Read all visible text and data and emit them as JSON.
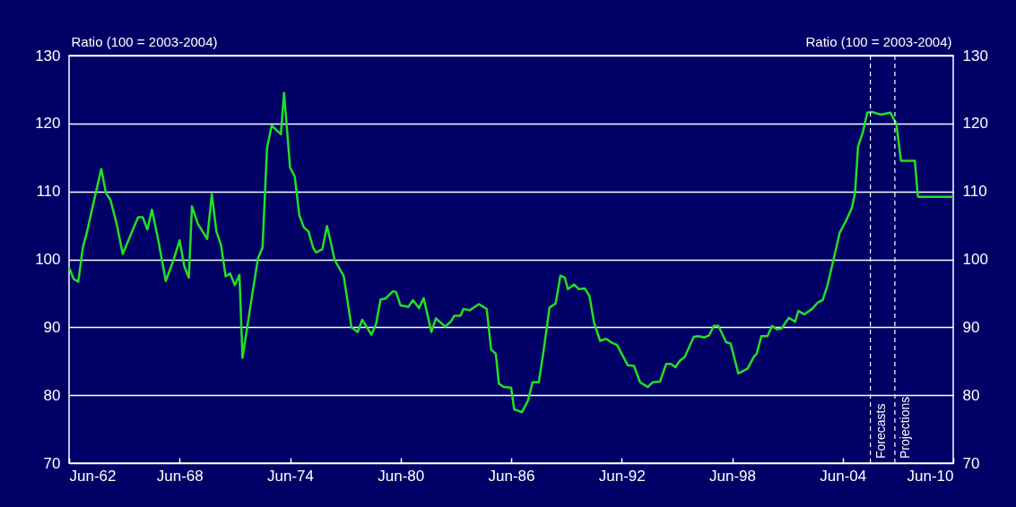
{
  "chart_data": {
    "type": "line",
    "ylabel": "Ratio (100 = 2003-2004)",
    "y2label": "Ratio (100 = 2003-2004)",
    "x": [
      "1962-06",
      "1962-09",
      "1962-12",
      "1963-03",
      "1963-06",
      "1963-09",
      "1964-03",
      "1964-06",
      "1964-09",
      "1965-01",
      "1965-05",
      "1966-03",
      "1966-06",
      "1966-09",
      "1966-12",
      "1967-04",
      "1967-09",
      "1968-02",
      "1968-06",
      "1968-09",
      "1968-12",
      "1969-02",
      "1969-06",
      "1969-12",
      "1970-03",
      "1970-06",
      "1970-09",
      "1970-12",
      "1971-03",
      "1971-06",
      "1971-09",
      "1971-11",
      "1972-04",
      "1972-09",
      "1972-12",
      "1973-03",
      "1973-06",
      "1973-12",
      "1974-02",
      "1974-06",
      "1974-09",
      "1974-12",
      "1975-03",
      "1975-06",
      "1975-09",
      "1975-11",
      "1976-03",
      "1976-06",
      "1976-08",
      "1976-11",
      "1977-05",
      "1977-10",
      "1978-02",
      "1978-05",
      "1978-11",
      "1979-02",
      "1979-05",
      "1979-08",
      "1980-01",
      "1980-03",
      "1980-06",
      "1980-11",
      "1981-02",
      "1981-06",
      "1981-09",
      "1982-02",
      "1982-05",
      "1982-11",
      "1983-03",
      "1983-05",
      "1983-09",
      "1983-11",
      "1984-03",
      "1984-09",
      "1985-02",
      "1985-05",
      "1985-08",
      "1985-10",
      "1986-01",
      "1986-06",
      "1986-08",
      "1987-01",
      "1987-05",
      "1987-08",
      "1987-12",
      "1988-03",
      "1988-07",
      "1988-11",
      "1989-02",
      "1989-05",
      "1989-07",
      "1989-11",
      "1990-02",
      "1990-06",
      "1990-09",
      "1990-12",
      "1991-04",
      "1991-08",
      "1991-11",
      "1992-03",
      "1992-06",
      "1992-10",
      "1993-02",
      "1993-06",
      "1993-11",
      "1994-02",
      "1994-07",
      "1994-11",
      "1995-02",
      "1995-05",
      "1995-08",
      "1995-11",
      "1996-05",
      "1996-08",
      "1996-12",
      "1997-03",
      "1997-06",
      "1997-09",
      "1998-02",
      "1998-05",
      "1998-10",
      "1999-04",
      "1999-08",
      "1999-10",
      "2000-01",
      "2000-05",
      "2000-08",
      "2000-11",
      "2001-02",
      "2001-07",
      "2001-11",
      "2002-01",
      "2002-05",
      "2002-10",
      "2003-02",
      "2003-05",
      "2003-08",
      "2003-12",
      "2004-04",
      "2004-08",
      "2004-12",
      "2005-02",
      "2005-04",
      "2005-07",
      "2005-10",
      "2006-01",
      "2006-07",
      "2007-01",
      "2007-05",
      "2007-08",
      "2008-05",
      "2008-07",
      "2010-06"
    ],
    "series": [
      {
        "color": "#22e022",
        "values": [
          98.8,
          97.1,
          96.7,
          101.7,
          104.3,
          107.4,
          113.3,
          109.8,
          108.7,
          105.2,
          100.8,
          106.2,
          106.2,
          104.4,
          107.3,
          103.0,
          96.8,
          99.9,
          102.8,
          99.0,
          97.3,
          107.8,
          105.2,
          103.0,
          109.6,
          104.1,
          102.1,
          97.5,
          97.9,
          96.2,
          97.7,
          85.5,
          92.9,
          100.1,
          101.7,
          116.4,
          119.7,
          118.4,
          124.5,
          113.5,
          112.2,
          106.5,
          104.7,
          104.1,
          101.7,
          101.0,
          101.5,
          104.9,
          103.0,
          99.9,
          97.5,
          90.0,
          89.3,
          91.1,
          88.9,
          90.5,
          94.1,
          94.2,
          95.3,
          95.2,
          93.2,
          93.0,
          94.0,
          92.8,
          94.3,
          89.3,
          91.3,
          90.1,
          90.9,
          91.7,
          91.7,
          92.7,
          92.5,
          93.4,
          92.7,
          86.7,
          86.1,
          81.7,
          81.2,
          81.1,
          77.9,
          77.5,
          79.2,
          81.9,
          81.9,
          86.3,
          92.9,
          93.5,
          97.6,
          97.3,
          95.6,
          96.3,
          95.6,
          95.7,
          94.6,
          90.7,
          88.0,
          88.3,
          87.8,
          87.4,
          86.1,
          84.4,
          84.3,
          81.9,
          81.2,
          81.9,
          82.0,
          84.6,
          84.6,
          84.1,
          85.1,
          85.6,
          88.6,
          88.7,
          88.5,
          88.8,
          90.2,
          90.2,
          87.8,
          87.6,
          83.2,
          83.9,
          85.6,
          86.1,
          88.7,
          88.7,
          90.2,
          89.7,
          89.8,
          91.4,
          90.8,
          92.4,
          91.9,
          92.7,
          93.7,
          94.0,
          96.1,
          99.9,
          103.9,
          105.6,
          107.6,
          109.8,
          116.6,
          118.6,
          121.6,
          121.7,
          121.3,
          121.6,
          119.9,
          114.5,
          114.5,
          109.2,
          109.2
        ]
      }
    ],
    "xlim": [
      "1962-06",
      "2010-06"
    ],
    "xticks": [
      {
        "value": "1962-06",
        "label": "Jun-62"
      },
      {
        "value": "1968-06",
        "label": "Jun-68"
      },
      {
        "value": "1974-06",
        "label": "Jun-74"
      },
      {
        "value": "1980-06",
        "label": "Jun-80"
      },
      {
        "value": "1986-06",
        "label": "Jun-86"
      },
      {
        "value": "1992-06",
        "label": "Jun-92"
      },
      {
        "value": "1998-06",
        "label": "Jun-98"
      },
      {
        "value": "2004-06",
        "label": "Jun-04"
      },
      {
        "value": "2010-06",
        "label": "Jun-10"
      }
    ],
    "ylim": [
      70,
      130
    ],
    "yticks": [
      70,
      80,
      90,
      100,
      110,
      120,
      130
    ],
    "y2lim": [
      70,
      130
    ],
    "y2ticks": [
      70,
      80,
      90,
      100,
      110,
      120,
      130
    ],
    "grid": "y",
    "ref_lines": [
      {
        "axis": "x",
        "value": "2005-12",
        "label": "Forecasts",
        "color": "#ffffff",
        "line_style": "dashed"
      },
      {
        "axis": "x",
        "value": "2007-04",
        "label": "Projections",
        "color": "#ffffff",
        "line_style": "dashed"
      }
    ]
  }
}
